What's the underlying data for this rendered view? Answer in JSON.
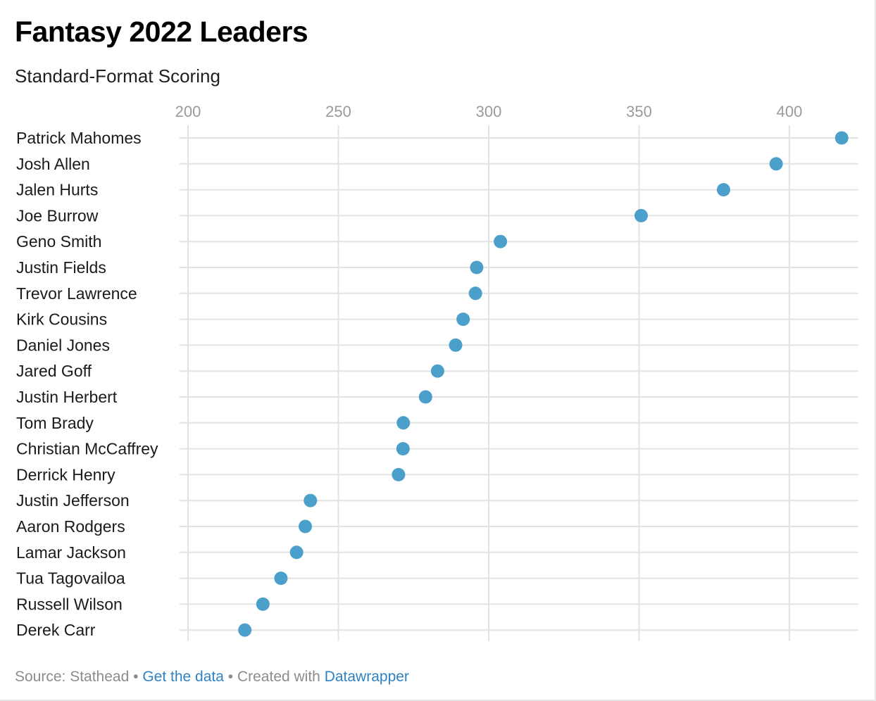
{
  "header": {
    "title": "Fantasy 2022 Leaders",
    "subtitle": "Standard-Format Scoring"
  },
  "footer": {
    "source_label": "Source: Stathead",
    "separator": "•",
    "get_data_link": "Get the data",
    "created_with_label": "Created with",
    "datawrapper_link": "Datawrapper"
  },
  "colors": {
    "dot": "#4b9fcb",
    "grid": "#e3e3e3",
    "link": "#2e82c4"
  },
  "chart_data": {
    "type": "scatter",
    "subtype": "dot-plot",
    "title": "Fantasy 2022 Leaders",
    "subtitle": "Standard-Format Scoring",
    "xlabel": "",
    "ylabel": "",
    "xlim": [
      200,
      420
    ],
    "xticks": [
      200,
      250,
      300,
      350,
      400
    ],
    "xtick_labels": [
      "200",
      "250",
      "300",
      "350",
      "400"
    ],
    "grid": true,
    "legend": "none",
    "series": [
      {
        "categories": [
          "Patrick Mahomes",
          "Josh Allen",
          "Jalen Hurts",
          "Joe Burrow",
          "Geno Smith",
          "Justin Fields",
          "Trevor Lawrence",
          "Kirk Cousins",
          "Daniel Jones",
          "Jared Goff",
          "Justin Herbert",
          "Tom Brady",
          "Christian McCaffrey",
          "Derrick Henry",
          "Justin Jefferson",
          "Aaron Rodgers",
          "Lamar Jackson",
          "Tua Tagovailoa",
          "Russell Wilson",
          "Derek Carr"
        ],
        "values": [
          417.4,
          395.6,
          378.1,
          350.7,
          303.9,
          296.0,
          295.6,
          291.5,
          289.0,
          283.0,
          279.0,
          271.6,
          271.5,
          270.0,
          240.7,
          239.0,
          236.1,
          230.9,
          224.9,
          218.9
        ]
      }
    ]
  },
  "source": "Source: Stathead"
}
